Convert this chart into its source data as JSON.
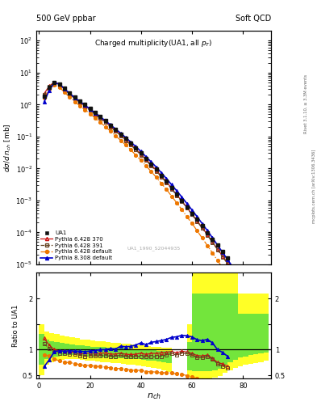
{
  "title_top_left": "500 GeV ppbar",
  "title_top_right": "Soft QCD",
  "main_title": "Charged multiplicity(UA1, all p_{T})",
  "ylabel_main": "dσ/d n_{ch} [mb]",
  "ylabel_ratio": "Ratio to UA1",
  "xlabel": "n_{ch}",
  "watermark": "UA1_1990_S2044935",
  "right_label1": "Rivet 3.1.10, ≥ 3.3M events",
  "right_label2": "mcplots.cern.ch [arXiv:1306.3436]",
  "ylim_main": [
    1e-05,
    200
  ],
  "ylim_ratio": [
    0.43,
    2.5
  ],
  "xlim": [
    -1,
    91
  ],
  "ua1_x": [
    2,
    4,
    6,
    8,
    10,
    12,
    14,
    16,
    18,
    20,
    22,
    24,
    26,
    28,
    30,
    32,
    34,
    36,
    38,
    40,
    42,
    44,
    46,
    48,
    50,
    52,
    54,
    56,
    58,
    60,
    62,
    64,
    66,
    68,
    70,
    72,
    74
  ],
  "ua1_y": [
    1.8,
    3.5,
    5.0,
    4.5,
    3.2,
    2.3,
    1.7,
    1.3,
    1.0,
    0.75,
    0.56,
    0.42,
    0.31,
    0.23,
    0.17,
    0.12,
    0.088,
    0.063,
    0.044,
    0.03,
    0.021,
    0.014,
    0.0095,
    0.0062,
    0.004,
    0.0025,
    0.0016,
    0.001,
    0.00063,
    0.0004,
    0.00026,
    0.00016,
    9.5e-05,
    6e-05,
    4e-05,
    2.5e-05,
    1.6e-05
  ],
  "py6_370_x": [
    2,
    4,
    6,
    8,
    10,
    12,
    14,
    16,
    18,
    20,
    22,
    24,
    26,
    28,
    30,
    32,
    34,
    36,
    38,
    40,
    42,
    44,
    46,
    48,
    50,
    52,
    54,
    56,
    58,
    60,
    62,
    64,
    66,
    68,
    70,
    72,
    74,
    76,
    78,
    80,
    82,
    84,
    86,
    88
  ],
  "py6_370_y": [
    2.2,
    3.8,
    5.0,
    4.4,
    3.1,
    2.2,
    1.6,
    1.2,
    0.92,
    0.7,
    0.52,
    0.39,
    0.29,
    0.21,
    0.155,
    0.112,
    0.08,
    0.057,
    0.04,
    0.028,
    0.019,
    0.013,
    0.0088,
    0.0058,
    0.0038,
    0.0024,
    0.0015,
    0.00097,
    0.0006,
    0.00037,
    0.00023,
    0.00014,
    8.5e-05,
    5e-05,
    3e-05,
    1.8e-05,
    1.08e-05,
    6.4e-06,
    3.8e-06,
    2.2e-06,
    1.3e-06,
    7.5e-07,
    4.3e-07,
    2.5e-07
  ],
  "py6_391_x": [
    2,
    4,
    6,
    8,
    10,
    12,
    14,
    16,
    18,
    20,
    22,
    24,
    26,
    28,
    30,
    32,
    34,
    36,
    38,
    40,
    42,
    44,
    46,
    48,
    50,
    52,
    54,
    56,
    58,
    60,
    62,
    64,
    66,
    68,
    70,
    72,
    74,
    76,
    78,
    80,
    82,
    84,
    86,
    88
  ],
  "py6_391_y": [
    2.0,
    3.6,
    4.8,
    4.2,
    2.95,
    2.1,
    1.55,
    1.15,
    0.87,
    0.66,
    0.49,
    0.37,
    0.275,
    0.2,
    0.148,
    0.107,
    0.076,
    0.054,
    0.038,
    0.026,
    0.018,
    0.012,
    0.0082,
    0.0054,
    0.0036,
    0.0023,
    0.00143,
    0.00093,
    0.00058,
    0.00036,
    0.00022,
    0.000135,
    8.2e-05,
    4.9e-05,
    2.9e-05,
    1.7e-05,
    1.03e-05,
    6.1e-06,
    3.6e-06,
    2.1e-06,
    1.2e-06,
    7.1e-07,
    4.1e-07,
    2.4e-07
  ],
  "py6_def_x": [
    2,
    4,
    6,
    8,
    10,
    12,
    14,
    16,
    18,
    20,
    22,
    24,
    26,
    28,
    30,
    32,
    34,
    36,
    38,
    40,
    42,
    44,
    46,
    48,
    50,
    52,
    54,
    56,
    58,
    60,
    62,
    64,
    66,
    68,
    70,
    72,
    74,
    76,
    78,
    80,
    82,
    84,
    86,
    88
  ],
  "py6_def_y": [
    1.6,
    3.1,
    4.1,
    3.5,
    2.4,
    1.72,
    1.24,
    0.92,
    0.69,
    0.52,
    0.38,
    0.28,
    0.205,
    0.148,
    0.107,
    0.076,
    0.054,
    0.038,
    0.026,
    0.018,
    0.012,
    0.008,
    0.0053,
    0.0034,
    0.0022,
    0.00136,
    0.00084,
    0.00052,
    0.00031,
    0.00019,
    0.000113,
    6.6e-05,
    3.9e-05,
    2.3e-05,
    1.33e-05,
    7.7e-06,
    4.5e-06,
    2.6e-06,
    1.5e-06,
    8.5e-07,
    4.8e-07,
    2.7e-07,
    1.5e-07,
    8.5e-08
  ],
  "py8_def_x": [
    2,
    4,
    6,
    8,
    10,
    12,
    14,
    16,
    18,
    20,
    22,
    24,
    26,
    28,
    30,
    32,
    34,
    36,
    38,
    40,
    42,
    44,
    46,
    48,
    50,
    52,
    54,
    56,
    58,
    60,
    62,
    64,
    66,
    68,
    70,
    72,
    74,
    76,
    78,
    80,
    82,
    84,
    86,
    88
  ],
  "py8_def_y": [
    1.2,
    2.8,
    4.8,
    4.4,
    3.1,
    2.25,
    1.65,
    1.26,
    0.96,
    0.73,
    0.55,
    0.42,
    0.31,
    0.234,
    0.172,
    0.128,
    0.093,
    0.067,
    0.048,
    0.034,
    0.023,
    0.016,
    0.011,
    0.0073,
    0.0048,
    0.0031,
    0.002,
    0.00128,
    0.0008,
    0.0005,
    0.00031,
    0.000188,
    0.000114,
    6.8e-05,
    4e-05,
    2.36e-05,
    1.39e-05,
    8.1e-06,
    4.7e-06,
    2.7e-06,
    1.6e-06,
    9e-07,
    5.2e-07,
    2.9e-07
  ],
  "color_ua1": "#111111",
  "color_py6_370": "#cc1111",
  "color_py6_391": "#664422",
  "color_py6_def": "#ee7700",
  "color_py8_def": "#0000cc",
  "ratio_band_edges": [
    0,
    2,
    4,
    6,
    8,
    10,
    12,
    14,
    16,
    18,
    20,
    22,
    24,
    26,
    28,
    30,
    32,
    34,
    36,
    38,
    40,
    42,
    44,
    46,
    48,
    50,
    52,
    54,
    56,
    58,
    60,
    62,
    64,
    66,
    68,
    70,
    72,
    74,
    76,
    78,
    80,
    82,
    84,
    86,
    88,
    90
  ],
  "ratio_yellow_lo": [
    0.5,
    0.7,
    0.75,
    0.78,
    0.8,
    0.82,
    0.82,
    0.81,
    0.8,
    0.79,
    0.78,
    0.77,
    0.76,
    0.75,
    0.74,
    0.73,
    0.72,
    0.71,
    0.7,
    0.69,
    0.68,
    0.66,
    0.64,
    0.62,
    0.6,
    0.57,
    0.0,
    0.0,
    0.0,
    0.45,
    0.43,
    0.43,
    0.43,
    0.43,
    0.45,
    0.48,
    0.55,
    0.6,
    0.65,
    0.68,
    0.7,
    0.72,
    0.74,
    0.76,
    0.78,
    0.8
  ],
  "ratio_yellow_hi": [
    1.5,
    1.35,
    1.32,
    1.3,
    1.28,
    1.26,
    1.24,
    1.22,
    1.2,
    1.19,
    1.18,
    1.17,
    1.16,
    1.15,
    1.14,
    1.13,
    1.12,
    1.11,
    1.1,
    1.09,
    1.08,
    1.07,
    1.06,
    1.05,
    1.04,
    1.03,
    0.0,
    0.0,
    0.0,
    1.5,
    2.5,
    2.5,
    2.5,
    2.5,
    2.5,
    2.5,
    2.5,
    2.5,
    2.5,
    2.1,
    2.1,
    2.1,
    2.1,
    2.1,
    2.1,
    2.1
  ],
  "ratio_green_lo": [
    0.7,
    0.82,
    0.85,
    0.87,
    0.88,
    0.89,
    0.89,
    0.89,
    0.88,
    0.87,
    0.87,
    0.86,
    0.85,
    0.85,
    0.84,
    0.83,
    0.83,
    0.82,
    0.81,
    0.81,
    0.8,
    0.79,
    0.78,
    0.77,
    0.76,
    0.74,
    0.0,
    0.0,
    0.0,
    0.6,
    0.58,
    0.58,
    0.58,
    0.58,
    0.6,
    0.63,
    0.7,
    0.75,
    0.8,
    0.85,
    0.87,
    0.89,
    0.91,
    0.93,
    0.95,
    0.97
  ],
  "ratio_green_hi": [
    1.3,
    1.2,
    1.17,
    1.15,
    1.13,
    1.11,
    1.1,
    1.09,
    1.08,
    1.07,
    1.06,
    1.06,
    1.05,
    1.04,
    1.04,
    1.03,
    1.03,
    1.02,
    1.01,
    1.01,
    1.0,
    1.0,
    0.99,
    0.98,
    0.98,
    0.97,
    0.0,
    0.0,
    0.0,
    1.15,
    2.1,
    2.1,
    2.1,
    2.1,
    2.1,
    2.1,
    2.1,
    2.1,
    2.1,
    1.7,
    1.7,
    1.7,
    1.7,
    1.7,
    1.7,
    1.7
  ]
}
